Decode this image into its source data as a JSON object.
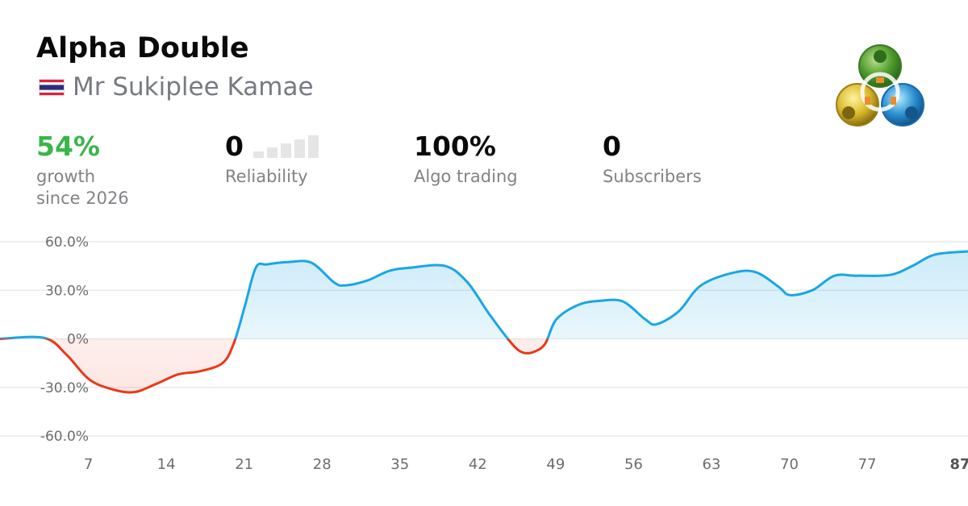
{
  "header": {
    "title": "Alpha Double",
    "author": "Mr Sukiplee Kamae",
    "flag_icon": "thailand-flag-icon",
    "logo_icon": "metatrader-logo-icon"
  },
  "stats": {
    "growth": {
      "value": "54%",
      "label_line1": "growth",
      "label_line2": "since 2026"
    },
    "reliability": {
      "value": "0",
      "label": "Reliability",
      "level": 0,
      "max_level": 5
    },
    "algo": {
      "value": "100%",
      "label": "Algo trading"
    },
    "subscribers": {
      "value": "0",
      "label": "Subscribers"
    }
  },
  "colors": {
    "positive": "#1aa6e4",
    "negative": "#e8391a",
    "growth_text": "#3ab54a",
    "grid": "#e9eaec"
  },
  "chart_data": {
    "type": "area",
    "title": "",
    "xlabel": "",
    "ylabel": "",
    "y_unit": "%",
    "ylim": [
      -60,
      60
    ],
    "xlim": [
      0,
      87
    ],
    "grid": true,
    "y_ticks": [
      60,
      30,
      0,
      -30,
      -60
    ],
    "y_tick_labels": [
      "60.0%",
      "30.0%",
      "0%",
      "-30.0%",
      "-60.0%"
    ],
    "x_ticks": [
      7,
      14,
      21,
      28,
      35,
      42,
      49,
      56,
      63,
      70,
      77,
      87
    ],
    "x_tick_labels": [
      "7",
      "14",
      "21",
      "28",
      "35",
      "42",
      "49",
      "56",
      "63",
      "70",
      "77",
      "87"
    ],
    "highlight_last_tick": true,
    "series": [
      {
        "x": [
          0,
          4,
          6,
          8,
          10,
          12,
          14,
          16,
          18,
          20,
          21,
          22,
          23,
          24,
          26,
          28,
          30,
          31,
          33,
          35,
          37,
          40,
          42,
          44,
          46,
          47,
          48,
          49,
          50,
          52,
          54,
          56,
          58,
          59,
          61,
          63,
          66,
          68,
          70,
          71,
          73,
          75,
          77,
          80,
          82,
          84,
          87
        ],
        "y": [
          0,
          0.5,
          -10,
          -25,
          -31,
          -33,
          -28,
          -22,
          -20,
          -15,
          -3,
          20,
          44,
          46,
          47.5,
          47,
          35,
          33,
          36,
          42,
          44,
          45,
          35,
          15,
          -3,
          -8.5,
          -8,
          -3,
          12,
          21,
          23.5,
          23,
          12,
          9,
          17,
          33,
          41,
          41,
          32,
          27,
          30,
          39,
          39,
          39.5,
          45,
          52,
          54
        ]
      }
    ]
  }
}
